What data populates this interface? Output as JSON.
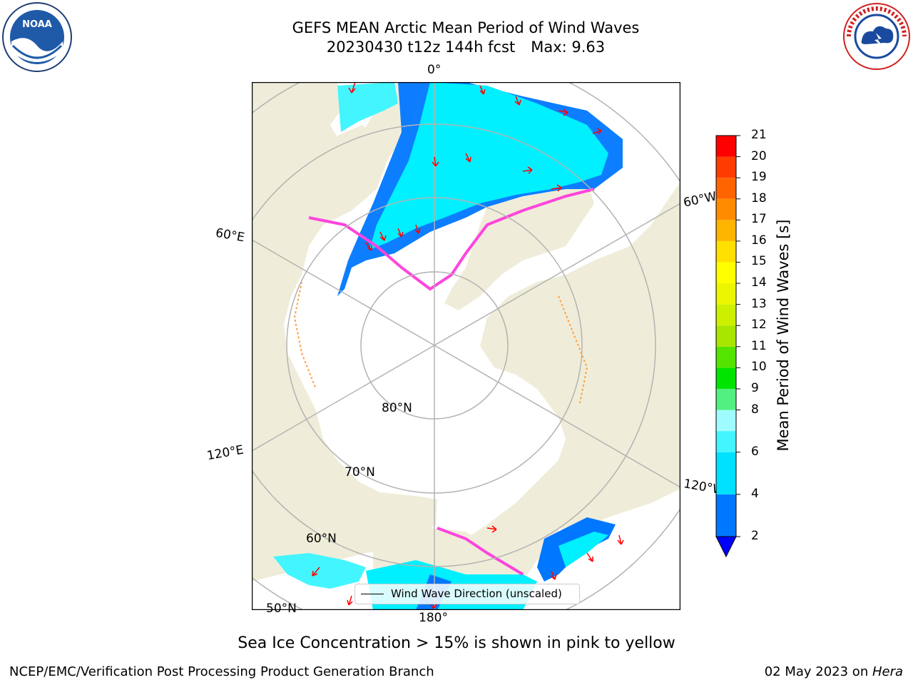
{
  "header": {
    "title_line1": "GEFS MEAN Arctic Mean Period of Wind Waves",
    "title_line2": "20230430 t12z 144h fcst",
    "title_max": "Max: 9.63"
  },
  "map": {
    "land_color": "#efedd9",
    "ocean_color": "#ffffff",
    "grid_color": "#b3b3b3",
    "meridian_labels": [
      "0°",
      "60°W",
      "120°W",
      "180°",
      "120°E",
      "60°E"
    ],
    "parallel_labels": [
      "80°N",
      "70°N",
      "60°N",
      "50°N"
    ],
    "arrow_color": "#ff0000"
  },
  "legend": {
    "label": "Wind Wave Direction (unscaled)"
  },
  "colorbar": {
    "label": "Mean Period of Wind Waves [s]",
    "levels": [
      2,
      3,
      4,
      5,
      6,
      7,
      8,
      9,
      10,
      11,
      12,
      13,
      14,
      15,
      16,
      17,
      18,
      19,
      20,
      21
    ],
    "tick_labels": [
      "2",
      "4",
      "6",
      "8",
      "9",
      "10",
      "11",
      "12",
      "13",
      "14",
      "15",
      "16",
      "17",
      "18",
      "19",
      "20",
      "21"
    ],
    "colors": [
      "#0000ff",
      "#0077ff",
      "#00e0ff",
      "#43f5ff",
      "#9efcff",
      "#52f080",
      "#00e400",
      "#55e400",
      "#a8e600",
      "#ccf000",
      "#ecf600",
      "#ffff00",
      "#ffe000",
      "#ffb400",
      "#ff8c00",
      "#ff6400",
      "#ff3c00",
      "#ff0000"
    ],
    "extend": "min"
  },
  "chart_data": {
    "type": "heatmap",
    "title": "GEFS MEAN Arctic Mean Period of Wind Waves",
    "variable": "Mean Period of Wind Waves [s]",
    "max_value": 9.63,
    "color_range": [
      2,
      21
    ]
  },
  "subtitle": "Sea Ice Concentration > 15% is shown in pink to yellow",
  "footer": {
    "left": "NCEP/EMC/Verification Post Processing Product Generation Branch",
    "right_prefix": "02 May 2023 on ",
    "right_host": "Hera"
  },
  "logos": {
    "noaa": "NOAA",
    "nws": "NATIONAL WEATHER SERVICE"
  }
}
